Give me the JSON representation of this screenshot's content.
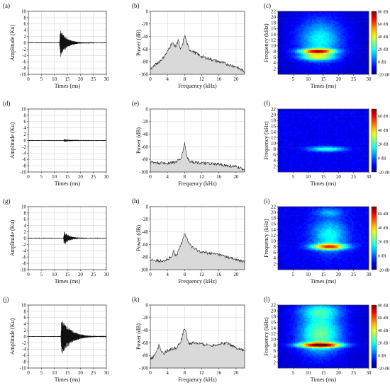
{
  "chart_data": [
    {
      "id": "a",
      "type": "line",
      "panel_label": "(a)",
      "xlabel": "Times (ms)",
      "ylabel": "Amplitude (Ku)",
      "xlim": [
        0,
        30
      ],
      "ylim": [
        -10,
        10
      ],
      "xticks": [
        0,
        5,
        10,
        15,
        20,
        25,
        30
      ],
      "yticks": [
        10,
        8,
        6,
        4,
        2,
        0,
        -2,
        -4,
        -6,
        -8,
        -10
      ],
      "grid": true,
      "signal": {
        "onset": 12.0,
        "peak": 5.2,
        "decay": 2.6,
        "freq": 3.2
      }
    },
    {
      "id": "b",
      "type": "area",
      "panel_label": "(b)",
      "xlabel": "Frequency (kHz)",
      "ylabel": "Power (dB)",
      "xlim": [
        0,
        22
      ],
      "ylim": [
        -100,
        0
      ],
      "xticks": [
        0,
        4,
        8,
        12,
        16,
        20
      ],
      "yticks": [
        0,
        -20,
        -40,
        -60,
        -80,
        -100
      ],
      "grid": true,
      "x": [
        0,
        1,
        2,
        3,
        4,
        5,
        6,
        6.5,
        7,
        7.5,
        8,
        9,
        10,
        11,
        12,
        13,
        14,
        15,
        16,
        17,
        18,
        19,
        20,
        21,
        22
      ],
      "y": [
        -92,
        -86,
        -80,
        -74,
        -64,
        -50,
        -56,
        -44,
        -62,
        -54,
        -38,
        -60,
        -64,
        -68,
        -72,
        -74,
        -76,
        -78,
        -80,
        -82,
        -84,
        -86,
        -88,
        -92,
        -96
      ]
    },
    {
      "id": "c",
      "type": "heatmap",
      "panel_label": "(c)",
      "xlabel": "Times (ms)",
      "ylabel": "Frequency (kHz)",
      "xlim": [
        0,
        30
      ],
      "ylim": [
        0,
        22
      ],
      "xticks": [
        5,
        10,
        15,
        20,
        25,
        30
      ],
      "yticks": [
        2,
        4,
        6,
        8,
        10,
        12,
        14,
        16,
        18,
        20,
        22
      ],
      "colorbar": {
        "ticks": [
          "80 dB",
          "60 dB",
          "40 dB",
          "20 dB",
          "0 dB",
          "-20 dB"
        ],
        "min": -20,
        "max": 80
      },
      "blobs": [
        {
          "t": 13,
          "f": 8,
          "st": 4,
          "sf": 0.6,
          "a": 70
        },
        {
          "t": 13,
          "f": 6,
          "st": 4,
          "sf": 0.8,
          "a": 40
        },
        {
          "t": 14,
          "f": 12,
          "st": 5,
          "sf": 5,
          "a": 30
        }
      ],
      "bg": -12
    },
    {
      "id": "d",
      "type": "line",
      "panel_label": "(d)",
      "xlabel": "Times (ms)",
      "ylabel": "Amplitude (Ku)",
      "xlim": [
        0,
        30
      ],
      "ylim": [
        -10,
        10
      ],
      "xticks": [
        0,
        5,
        10,
        15,
        20,
        25,
        30
      ],
      "yticks": [
        10,
        8,
        6,
        4,
        2,
        0,
        -2,
        -4,
        -6,
        -8,
        -10
      ],
      "grid": true,
      "signal": {
        "onset": 13.5,
        "peak": 0.5,
        "decay": 2.5,
        "freq": 2.5
      }
    },
    {
      "id": "e",
      "type": "area",
      "panel_label": "(e)",
      "xlabel": "Frequency (kHz)",
      "ylabel": "Power (dB)",
      "xlim": [
        0,
        22
      ],
      "ylim": [
        -100,
        0
      ],
      "xticks": [
        0,
        4,
        8,
        12,
        16,
        20
      ],
      "yticks": [
        0,
        -20,
        -40,
        -60,
        -80,
        -100
      ],
      "grid": true,
      "x": [
        0,
        2,
        4,
        6,
        7,
        7.5,
        8,
        8.5,
        9,
        10,
        12,
        14,
        16,
        18,
        20,
        22
      ],
      "y": [
        -84,
        -86,
        -86,
        -84,
        -80,
        -70,
        -54,
        -74,
        -82,
        -84,
        -86,
        -87,
        -88,
        -90,
        -92,
        -96
      ]
    },
    {
      "id": "f",
      "type": "heatmap",
      "panel_label": "(f)",
      "xlabel": "Times (ms)",
      "ylabel": "Frequency (kHz)",
      "xlim": [
        0,
        30
      ],
      "ylim": [
        0,
        22
      ],
      "xticks": [
        5,
        10,
        15,
        20,
        25,
        30
      ],
      "yticks": [
        2,
        4,
        6,
        8,
        10,
        12,
        14,
        16,
        18,
        20,
        22
      ],
      "colorbar": {
        "ticks": [
          "60 dB",
          "40 dB",
          "20 dB",
          "0 dB",
          "-20 dB"
        ],
        "min": -20,
        "max": 70
      },
      "blobs": [
        {
          "t": 16,
          "f": 8,
          "st": 4,
          "sf": 0.6,
          "a": 30
        }
      ],
      "bg": -10
    },
    {
      "id": "g",
      "type": "line",
      "panel_label": "(g)",
      "xlabel": "Times (ms)",
      "ylabel": "Amplitude (Ku)",
      "xlim": [
        0,
        30
      ],
      "ylim": [
        -10,
        10
      ],
      "xticks": [
        0,
        5,
        10,
        15,
        20,
        25,
        30
      ],
      "yticks": [
        10,
        8,
        6,
        4,
        2,
        0,
        -2,
        -4,
        -6,
        -8,
        -10
      ],
      "grid": true,
      "signal": {
        "onset": 13.5,
        "peak": 2.6,
        "decay": 2.2,
        "freq": 3.0
      }
    },
    {
      "id": "h",
      "type": "area",
      "panel_label": "(h)",
      "xlabel": "Frequency (kHz)",
      "ylabel": "Power (dB)",
      "xlim": [
        0,
        22
      ],
      "ylim": [
        -100,
        0
      ],
      "xticks": [
        0,
        4,
        8,
        12,
        16,
        20
      ],
      "yticks": [
        0,
        -20,
        -40,
        -60,
        -80,
        -100
      ],
      "grid": true,
      "x": [
        0,
        2,
        4,
        5,
        5.5,
        6,
        7,
        8,
        9,
        10,
        12,
        14,
        16,
        18,
        20,
        22
      ],
      "y": [
        -84,
        -86,
        -84,
        -80,
        -70,
        -80,
        -62,
        -42,
        -58,
        -66,
        -72,
        -74,
        -76,
        -80,
        -84,
        -88
      ]
    },
    {
      "id": "i",
      "type": "heatmap",
      "panel_label": "(i)",
      "xlabel": "Times (ms)",
      "ylabel": "Frequency (kHz)",
      "xlim": [
        0,
        30
      ],
      "ylim": [
        0,
        22
      ],
      "xticks": [
        5,
        10,
        15,
        20,
        25,
        30
      ],
      "yticks": [
        2,
        4,
        6,
        8,
        10,
        12,
        14,
        16,
        18,
        20,
        22
      ],
      "colorbar": {
        "ticks": [
          "60 dB",
          "40 dB",
          "20 dB",
          "0 dB",
          "-20 dB"
        ],
        "min": -20,
        "max": 70
      },
      "blobs": [
        {
          "t": 17,
          "f": 8,
          "st": 4,
          "sf": 0.7,
          "a": 55
        },
        {
          "t": 17,
          "f": 12,
          "st": 4,
          "sf": 4,
          "a": 25
        },
        {
          "t": 17,
          "f": 20,
          "st": 3,
          "sf": 1,
          "a": 15
        }
      ],
      "bg": -10
    },
    {
      "id": "j",
      "type": "line",
      "panel_label": "(j)",
      "xlabel": "Times (ms)",
      "ylabel": "Amplitude (Ku)",
      "xlim": [
        0,
        30
      ],
      "ylim": [
        -10,
        10
      ],
      "xticks": [
        0,
        5,
        10,
        15,
        20,
        25,
        30
      ],
      "yticks": [
        10,
        8,
        6,
        4,
        2,
        0,
        -2,
        -4,
        -6,
        -8,
        -10
      ],
      "grid": true,
      "signal": {
        "onset": 12.5,
        "peak": 7.2,
        "decay": 3.5,
        "freq": 3.2
      }
    },
    {
      "id": "k",
      "type": "area",
      "panel_label": "(k)",
      "xlabel": "Frequency (kHz)",
      "ylabel": "Power (dB)",
      "xlim": [
        0,
        22
      ],
      "ylim": [
        -100,
        0
      ],
      "xticks": [
        0,
        4,
        8,
        12,
        16,
        20
      ],
      "yticks": [
        0,
        -20,
        -40,
        -60,
        -80,
        -100
      ],
      "grid": true,
      "x": [
        0,
        1,
        2,
        3,
        4,
        5,
        6,
        7,
        8,
        9,
        10,
        12,
        14,
        16,
        18,
        20,
        22
      ],
      "y": [
        -86,
        -80,
        -64,
        -78,
        -72,
        -70,
        -68,
        -60,
        -36,
        -62,
        -60,
        -62,
        -64,
        -62,
        -60,
        -68,
        -72
      ]
    },
    {
      "id": "l",
      "type": "heatmap",
      "panel_label": "(l)",
      "xlabel": "Times (ms)",
      "ylabel": "Frequency (kHz)",
      "xlim": [
        0,
        30
      ],
      "ylim": [
        0,
        22
      ],
      "xticks": [
        5,
        10,
        15,
        20,
        25,
        30
      ],
      "yticks": [
        2,
        4,
        6,
        8,
        10,
        12,
        14,
        16,
        18,
        20,
        22
      ],
      "colorbar": {
        "ticks": [
          "80 dB",
          "60 dB",
          "40 dB",
          "20 dB",
          "0 dB",
          "-20 dB"
        ],
        "min": -20,
        "max": 80
      },
      "blobs": [
        {
          "t": 14,
          "f": 8,
          "st": 5,
          "sf": 0.6,
          "a": 75
        },
        {
          "t": 14,
          "f": 12,
          "st": 5,
          "sf": 5,
          "a": 40
        },
        {
          "t": 14,
          "f": 20,
          "st": 5,
          "sf": 2,
          "a": 25
        }
      ],
      "bg": -12
    }
  ]
}
